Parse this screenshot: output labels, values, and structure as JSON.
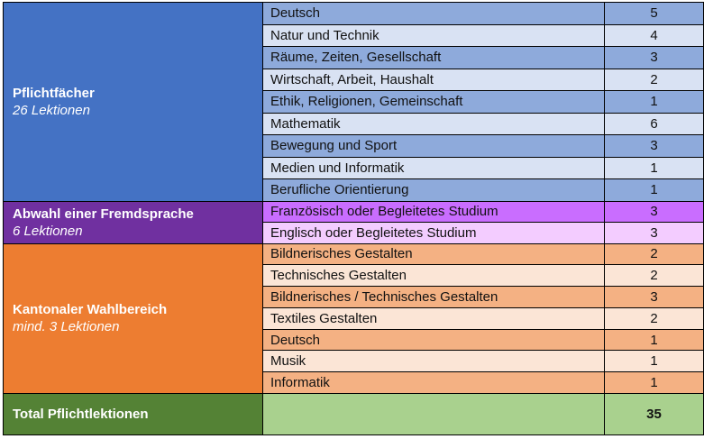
{
  "groups": [
    {
      "title": "Pflichtfächer",
      "subtitle": "26 Lektionen",
      "color": "#4472c4",
      "rows": [
        {
          "subject": "Deutsch",
          "lessons": "5"
        },
        {
          "subject": "Natur und Technik",
          "lessons": "4"
        },
        {
          "subject": "Räume, Zeiten, Gesellschaft",
          "lessons": "3"
        },
        {
          "subject": "Wirtschaft, Arbeit, Haushalt",
          "lessons": "2"
        },
        {
          "subject": "Ethik, Religionen, Gemeinschaft",
          "lessons": "1"
        },
        {
          "subject": "Mathematik",
          "lessons": "6"
        },
        {
          "subject": "Bewegung und Sport",
          "lessons": "3"
        },
        {
          "subject": "Medien und Informatik",
          "lessons": "1"
        },
        {
          "subject": "Berufliche Orientierung",
          "lessons": "1"
        }
      ]
    },
    {
      "title": "Abwahl einer Fremdsprache",
      "subtitle": "6 Lektionen",
      "color": "#7030a0",
      "rows": [
        {
          "subject": "Französisch oder Begleitetes Studium",
          "lessons": "3"
        },
        {
          "subject": "Englisch oder Begleitetes Studium",
          "lessons": "3"
        }
      ]
    },
    {
      "title": "Kantonaler Wahlbereich",
      "subtitle": "mind. 3 Lektionen",
      "color": "#ed7d31",
      "rows": [
        {
          "subject": "Bildnerisches Gestalten",
          "lessons": "2"
        },
        {
          "subject": "Technisches Gestalten",
          "lessons": "2"
        },
        {
          "subject": "Bildnerisches / Technisches Gestalten",
          "lessons": "3"
        },
        {
          "subject": "Textiles Gestalten",
          "lessons": "2"
        },
        {
          "subject": "Deutsch",
          "lessons": "1"
        },
        {
          "subject": "Musik",
          "lessons": "1"
        },
        {
          "subject": "Informatik",
          "lessons": "1"
        }
      ]
    }
  ],
  "total": {
    "label": "Total Pflichtlektionen",
    "value": "35",
    "color": "#548235",
    "value_bg": "#a9d18e"
  }
}
